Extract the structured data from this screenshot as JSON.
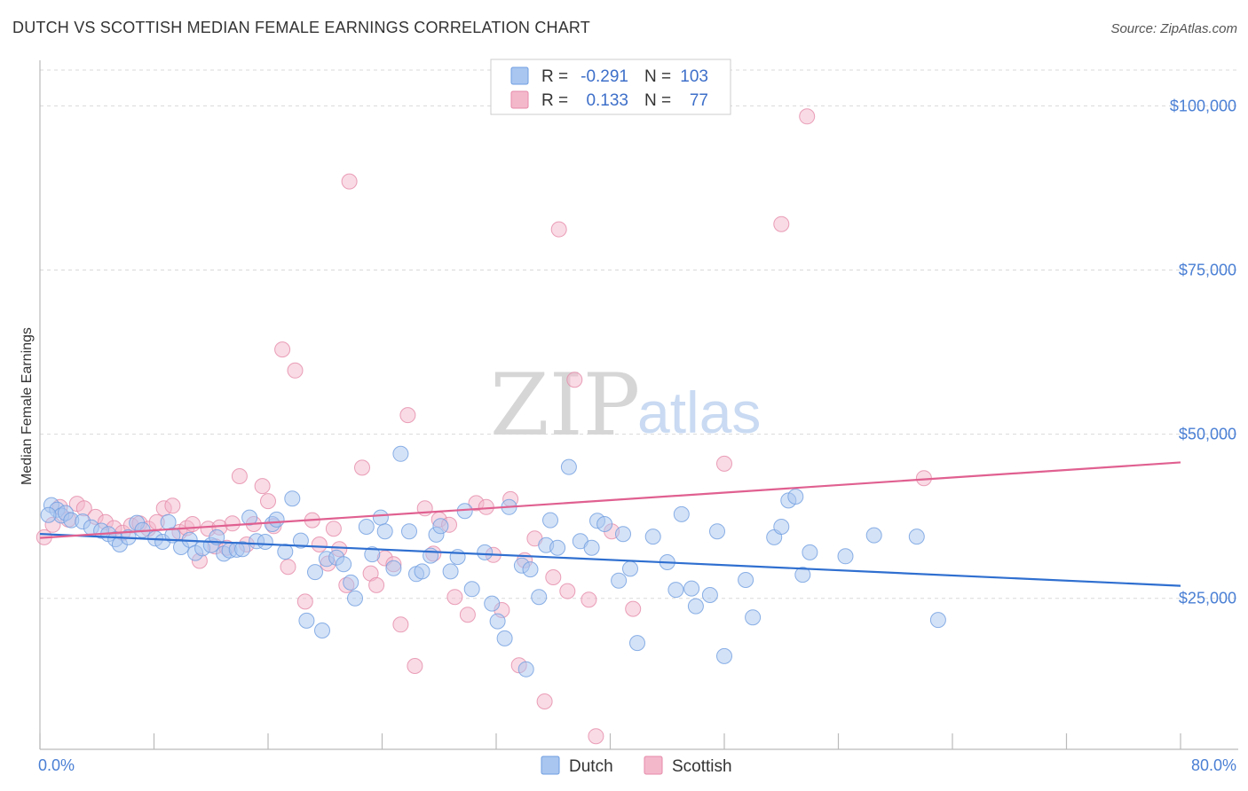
{
  "header": {
    "title": "DUTCH VS SCOTTISH MEDIAN FEMALE EARNINGS CORRELATION CHART",
    "source": "Source: ZipAtlas.com"
  },
  "watermark": {
    "zip": "ZIP",
    "atlas": "atlas"
  },
  "legend": {
    "rows": [
      {
        "r_label": "R =",
        "r_value": "-0.291",
        "n_label": "N =",
        "n_value": "103",
        "color": "#a9c6f0"
      },
      {
        "r_label": "R =",
        "r_value": "0.133",
        "n_label": "N =",
        "n_value": "77",
        "color": "#f4b8cb"
      }
    ]
  },
  "bottom_legend": {
    "items": [
      {
        "label": "Dutch",
        "color": "#a9c6f0"
      },
      {
        "label": "Scottish",
        "color": "#f4b8cb"
      }
    ]
  },
  "chart_data": {
    "type": "scatter",
    "title": "DUTCH VS SCOTTISH MEDIAN FEMALE EARNINGS CORRELATION CHART",
    "xlabel": "",
    "ylabel": "Median Female Earnings",
    "xlim": [
      0,
      80
    ],
    "ylim": [
      2000,
      106000
    ],
    "x_tick_labels": [
      "0.0%",
      "80.0%"
    ],
    "y_ticks": [
      25000,
      50000,
      75000,
      100000
    ],
    "y_tick_labels": [
      "$25,000",
      "$50,000",
      "$75,000",
      "$100,000"
    ],
    "grid": true,
    "legend_position": "top-center",
    "colors": {
      "dutch_fill": "#a9c6f0",
      "dutch_line": "#2f6fd0",
      "scottish_fill": "#f4b8cb",
      "scottish_line": "#e06090"
    },
    "series": [
      {
        "name": "Dutch",
        "r": -0.291,
        "n": 103,
        "trend": {
          "x": [
            0,
            80
          ],
          "y": [
            34800,
            26900
          ]
        },
        "points": [
          [
            0.8,
            39200
          ],
          [
            1.2,
            38500
          ],
          [
            1.5,
            37600
          ],
          [
            1.8,
            38000
          ],
          [
            2.2,
            36900
          ],
          [
            3.0,
            36700
          ],
          [
            3.6,
            35800
          ],
          [
            4.3,
            35300
          ],
          [
            4.8,
            34800
          ],
          [
            5.3,
            34000
          ],
          [
            5.6,
            33200
          ],
          [
            6.2,
            34300
          ],
          [
            6.8,
            36500
          ],
          [
            7.2,
            35400
          ],
          [
            8.1,
            34100
          ],
          [
            8.6,
            33600
          ],
          [
            9.0,
            36600
          ],
          [
            9.3,
            34600
          ],
          [
            9.9,
            32800
          ],
          [
            10.5,
            33900
          ],
          [
            10.9,
            31900
          ],
          [
            11.4,
            32600
          ],
          [
            12.0,
            33100
          ],
          [
            12.4,
            34300
          ],
          [
            12.9,
            31800
          ],
          [
            13.3,
            32300
          ],
          [
            13.8,
            32400
          ],
          [
            14.2,
            32500
          ],
          [
            14.7,
            37300
          ],
          [
            15.2,
            33700
          ],
          [
            15.8,
            33600
          ],
          [
            16.3,
            36300
          ],
          [
            16.6,
            37000
          ],
          [
            17.2,
            32100
          ],
          [
            17.7,
            40200
          ],
          [
            18.3,
            33800
          ],
          [
            18.7,
            21600
          ],
          [
            19.3,
            29000
          ],
          [
            19.8,
            20100
          ],
          [
            20.1,
            31000
          ],
          [
            20.8,
            31200
          ],
          [
            21.3,
            30200
          ],
          [
            21.8,
            27400
          ],
          [
            22.1,
            25000
          ],
          [
            22.9,
            35900
          ],
          [
            23.3,
            31700
          ],
          [
            23.9,
            37300
          ],
          [
            24.2,
            35200
          ],
          [
            24.8,
            29600
          ],
          [
            25.3,
            47000
          ],
          [
            25.9,
            35200
          ],
          [
            26.4,
            28700
          ],
          [
            26.8,
            29100
          ],
          [
            27.4,
            31500
          ],
          [
            27.8,
            34700
          ],
          [
            28.1,
            36000
          ],
          [
            28.8,
            29100
          ],
          [
            29.3,
            31300
          ],
          [
            29.8,
            38300
          ],
          [
            30.3,
            26400
          ],
          [
            31.2,
            32000
          ],
          [
            31.7,
            24200
          ],
          [
            32.1,
            21500
          ],
          [
            32.6,
            18900
          ],
          [
            32.9,
            38900
          ],
          [
            33.8,
            30000
          ],
          [
            34.1,
            14200
          ],
          [
            34.4,
            29400
          ],
          [
            35.0,
            25200
          ],
          [
            35.5,
            33100
          ],
          [
            35.8,
            36900
          ],
          [
            36.3,
            32700
          ],
          [
            37.1,
            45000
          ],
          [
            37.9,
            33700
          ],
          [
            38.7,
            32700
          ],
          [
            39.1,
            36800
          ],
          [
            39.6,
            36300
          ],
          [
            40.6,
            27700
          ],
          [
            40.9,
            34800
          ],
          [
            41.4,
            29500
          ],
          [
            41.9,
            18200
          ],
          [
            43.0,
            34400
          ],
          [
            44.0,
            30500
          ],
          [
            44.6,
            26300
          ],
          [
            45.0,
            37800
          ],
          [
            45.7,
            26500
          ],
          [
            46.0,
            23800
          ],
          [
            47.0,
            25500
          ],
          [
            47.5,
            35200
          ],
          [
            48.0,
            16200
          ],
          [
            49.5,
            27800
          ],
          [
            50.0,
            22100
          ],
          [
            51.5,
            34300
          ],
          [
            52.0,
            35900
          ],
          [
            52.5,
            39900
          ],
          [
            53.0,
            40500
          ],
          [
            53.5,
            28600
          ],
          [
            54.0,
            32000
          ],
          [
            56.5,
            31400
          ],
          [
            58.5,
            34600
          ],
          [
            61.5,
            34400
          ],
          [
            63.0,
            21700
          ],
          [
            0.6,
            37700
          ]
        ]
      },
      {
        "name": "Scottish",
        "r": 0.133,
        "n": 77,
        "trend": {
          "x": [
            0,
            80
          ],
          "y": [
            34200,
            45700
          ]
        },
        "points": [
          [
            0.3,
            34300
          ],
          [
            0.9,
            36200
          ],
          [
            1.4,
            38900
          ],
          [
            2.0,
            37000
          ],
          [
            2.6,
            39400
          ],
          [
            3.1,
            38700
          ],
          [
            3.9,
            37400
          ],
          [
            4.6,
            36600
          ],
          [
            5.2,
            35700
          ],
          [
            5.8,
            35000
          ],
          [
            6.4,
            36100
          ],
          [
            7.0,
            36400
          ],
          [
            7.6,
            35600
          ],
          [
            8.2,
            36600
          ],
          [
            8.7,
            38700
          ],
          [
            9.3,
            39100
          ],
          [
            9.8,
            35100
          ],
          [
            10.3,
            35700
          ],
          [
            10.7,
            36300
          ],
          [
            11.2,
            30700
          ],
          [
            11.8,
            35600
          ],
          [
            12.3,
            32900
          ],
          [
            12.6,
            35800
          ],
          [
            13.1,
            32700
          ],
          [
            13.5,
            36400
          ],
          [
            14.0,
            43600
          ],
          [
            14.5,
            33200
          ],
          [
            15.0,
            36300
          ],
          [
            15.6,
            42100
          ],
          [
            16.0,
            39800
          ],
          [
            16.4,
            36000
          ],
          [
            17.0,
            62900
          ],
          [
            17.4,
            29800
          ],
          [
            17.9,
            59700
          ],
          [
            18.6,
            24500
          ],
          [
            19.1,
            36900
          ],
          [
            19.6,
            33200
          ],
          [
            20.2,
            30300
          ],
          [
            20.6,
            35600
          ],
          [
            21.0,
            32500
          ],
          [
            21.5,
            27000
          ],
          [
            21.7,
            88500
          ],
          [
            22.6,
            44900
          ],
          [
            23.2,
            28800
          ],
          [
            23.6,
            27000
          ],
          [
            24.2,
            31100
          ],
          [
            24.8,
            30200
          ],
          [
            25.3,
            21000
          ],
          [
            25.8,
            52900
          ],
          [
            26.3,
            14700
          ],
          [
            27.0,
            38700
          ],
          [
            27.6,
            31800
          ],
          [
            28.0,
            37000
          ],
          [
            28.7,
            36200
          ],
          [
            29.1,
            25200
          ],
          [
            30.0,
            22500
          ],
          [
            30.6,
            39500
          ],
          [
            31.3,
            38900
          ],
          [
            31.8,
            31600
          ],
          [
            32.4,
            23200
          ],
          [
            33.0,
            40100
          ],
          [
            33.6,
            14800
          ],
          [
            34.0,
            30800
          ],
          [
            34.7,
            34100
          ],
          [
            35.4,
            9300
          ],
          [
            36.0,
            28200
          ],
          [
            36.4,
            81200
          ],
          [
            37.0,
            26100
          ],
          [
            37.5,
            58300
          ],
          [
            38.5,
            24800
          ],
          [
            39.0,
            4000
          ],
          [
            40.1,
            35200
          ],
          [
            41.6,
            23400
          ],
          [
            48.0,
            45500
          ],
          [
            52.0,
            82000
          ],
          [
            53.8,
            98400
          ],
          [
            62.0,
            43300
          ]
        ]
      }
    ]
  }
}
